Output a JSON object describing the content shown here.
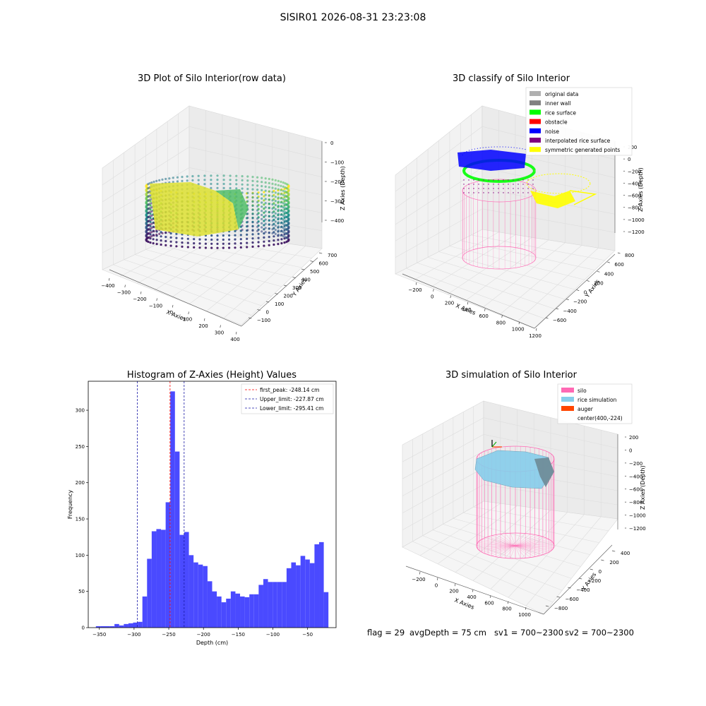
{
  "suptitle": "SISIR01 2026-08-31 23:23:08",
  "panels": {
    "tl": {
      "title": "3D Plot of Silo Interior(row data)"
    },
    "tr": {
      "title": "3D classify of Silo Interior"
    },
    "bl": {
      "title": "Histogram of Z-Axies (Height) Values"
    },
    "br": {
      "title": "3D simulation of Silo Interior"
    }
  },
  "footer": {
    "flag": "flag = 29",
    "avg": "avgDepth = 75 cm",
    "sv1": "sv1 = 700~2300",
    "sv2": "sv2 = 700~2300"
  },
  "colors": {
    "hist_bar": "#4a4aff",
    "peak_line": "#ff0000",
    "limit_line": "#1a1aa6",
    "silo": "#ff69b4",
    "rice_sim": "#87ceeb",
    "auger": "#ff4500",
    "inner_wall": "#808080",
    "rice_surface": "#00ff00",
    "obstacle": "#ff0000",
    "noise": "#0000ff",
    "interpolated": "#800080",
    "symmetric": "#ffff00",
    "original": "#b0b0b0"
  },
  "chart_data": [
    {
      "type": "scatter",
      "title": "3D Plot of Silo Interior(row data)",
      "xlabel": "X Axies",
      "ylabel": "Y Axies",
      "zlabel": "Z Axies (Depth)",
      "xticks": [
        "−400",
        "−300",
        "−200",
        "−100",
        "0",
        "100",
        "200",
        "300",
        "400"
      ],
      "yticks": [
        "−100",
        "0",
        "100",
        "200",
        "300",
        "400",
        "500",
        "600",
        "700"
      ],
      "zticks": [
        "0",
        "−100",
        "−200",
        "−300",
        "−400"
      ],
      "xlim": [
        -400,
        400
      ],
      "ylim": [
        -100,
        700
      ],
      "zlim": [
        -450,
        0
      ],
      "colormap": "viridis"
    },
    {
      "type": "scatter",
      "title": "3D classify of Silo Interior",
      "xlabel": "X Axies",
      "ylabel": "Y Axies",
      "zlabel": "Z Axies (Depth)",
      "xticks": [
        "−200",
        "0",
        "200",
        "400",
        "600",
        "800",
        "1000",
        "1200"
      ],
      "yticks": [
        "−600",
        "−400",
        "−200",
        "0",
        "200",
        "400",
        "600",
        "800"
      ],
      "zticks": [
        "200",
        "0",
        "−200",
        "−400",
        "−600",
        "−800",
        "−1000",
        "−1200"
      ],
      "legend": [
        "original data",
        "inner wall",
        "rice surface",
        "obstacle",
        "noise",
        "interpolated rice surface",
        "symmetric generated points"
      ],
      "legend_loc": "top-right"
    },
    {
      "type": "bar",
      "title": "Histogram of Z-Axies (Height) Values",
      "xlabel": "Depth (cm)",
      "ylabel": "Frequency",
      "xlim": [
        -366,
        -9
      ],
      "ylim": [
        0,
        340
      ],
      "xticks": [
        -350,
        -300,
        -250,
        -200,
        -150,
        -100,
        -50
      ],
      "xtick_labels": [
        "−350",
        "−300",
        "−250",
        "−200",
        "−150",
        "−100",
        "−50"
      ],
      "yticks": [
        0,
        50,
        100,
        150,
        200,
        250,
        300
      ],
      "bin_start": -355,
      "bin_width": 6.7,
      "values": [
        2,
        2,
        2,
        2,
        5,
        3,
        5,
        6,
        7,
        8,
        43,
        95,
        133,
        136,
        135,
        173,
        326,
        243,
        128,
        132,
        100,
        90,
        87,
        85,
        64,
        50,
        43,
        35,
        40,
        50,
        47,
        43,
        42,
        46,
        46,
        59,
        67,
        63,
        63,
        63,
        63,
        82,
        90,
        86,
        99,
        94,
        89,
        115,
        118,
        49
      ],
      "vlines": [
        {
          "label": "first_peak: -248.14 cm",
          "x": -248.14,
          "color": "red"
        },
        {
          "label": "Upper_limit: -227.87 cm",
          "x": -227.87,
          "color": "blue"
        },
        {
          "label": "Lower_limit: -295.41 cm",
          "x": -295.41,
          "color": "blue"
        }
      ],
      "legend_loc": "top-right"
    },
    {
      "type": "area",
      "title": "3D simulation of Silo Interior",
      "xlabel": "X Axies",
      "ylabel": "Y Axies",
      "zlabel": "Z Axies (Depth)",
      "xticks": [
        "−200",
        "0",
        "200",
        "400",
        "600",
        "800",
        "1000"
      ],
      "yticks": [
        "−800",
        "−600",
        "−400",
        "−200",
        "0",
        "200",
        "400"
      ],
      "zticks": [
        "200",
        "0",
        "−200",
        "−400",
        "−600",
        "−800",
        "−1000",
        "−1200"
      ],
      "legend": [
        "silo",
        "rice simulation",
        "auger",
        "center(400,-224)"
      ],
      "legend_loc": "top-right"
    }
  ]
}
